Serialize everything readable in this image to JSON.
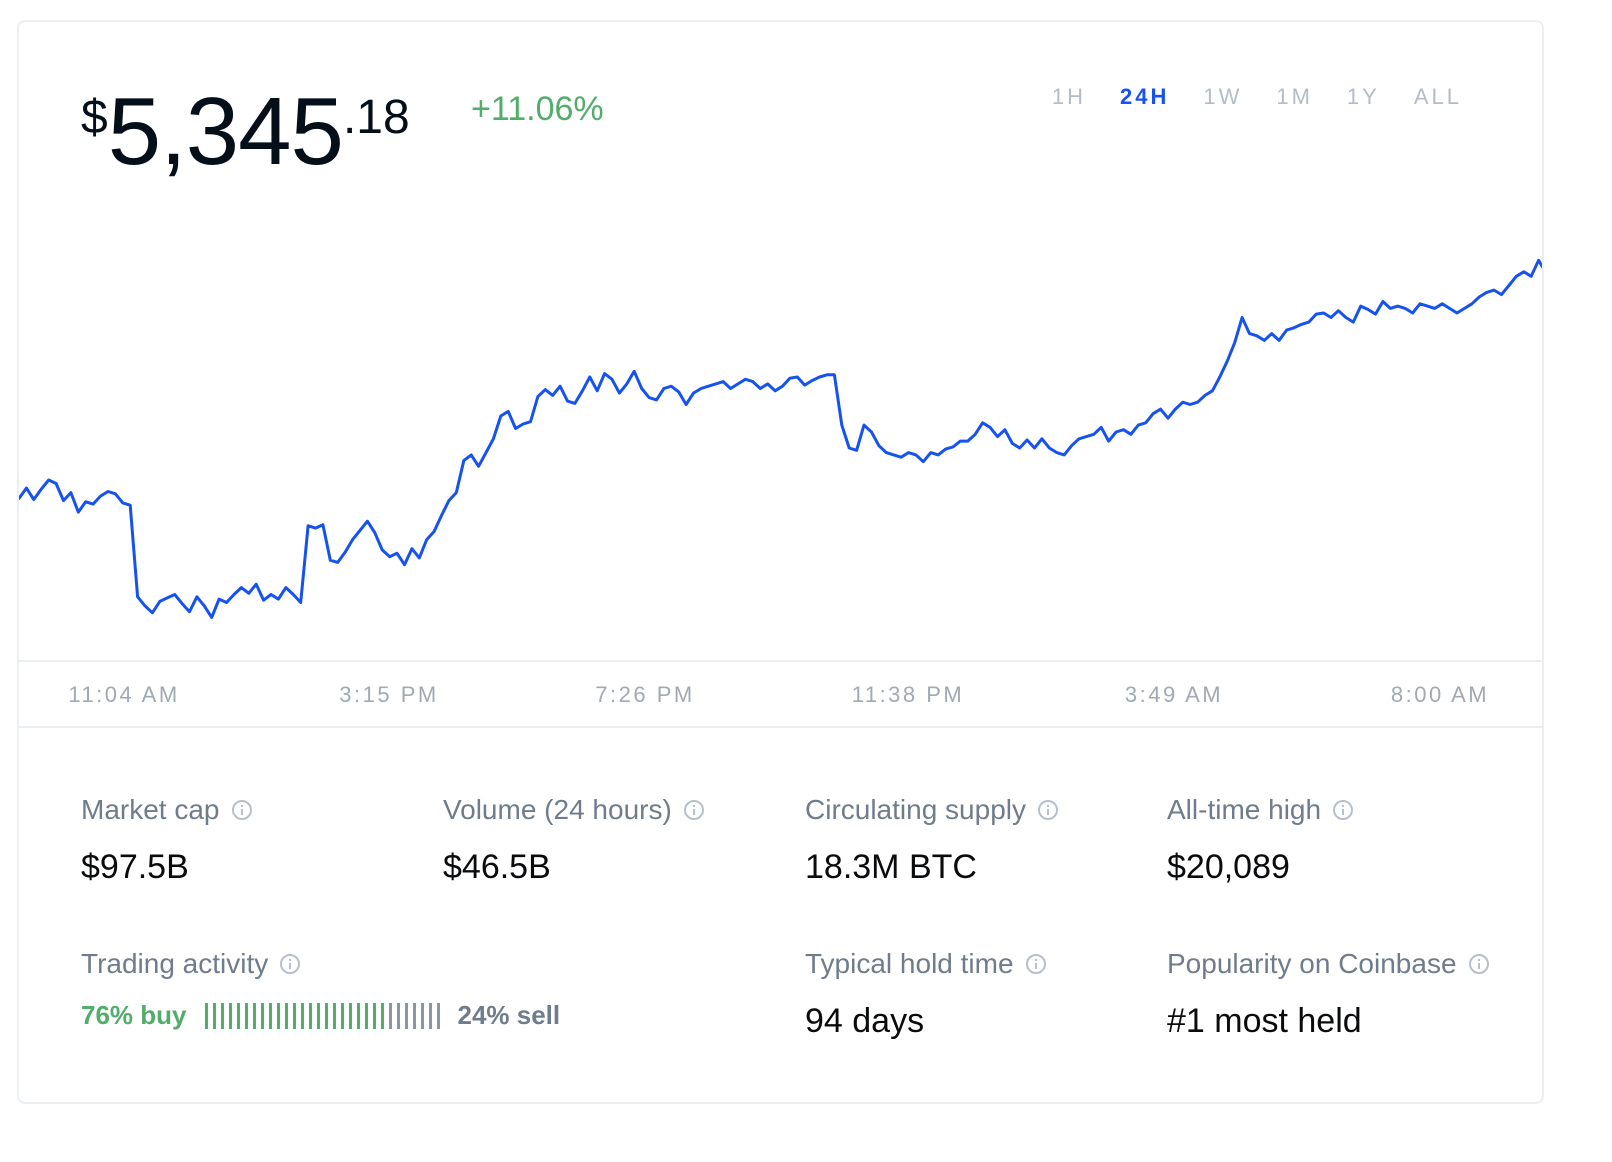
{
  "price": {
    "currency_symbol": "$",
    "whole": "5,345",
    "cents": ".18",
    "change": "+11.06%"
  },
  "time_ranges": [
    {
      "label": "1H",
      "active": false
    },
    {
      "label": "24H",
      "active": true
    },
    {
      "label": "1W",
      "active": false
    },
    {
      "label": "1M",
      "active": false
    },
    {
      "label": "1Y",
      "active": false
    },
    {
      "label": "ALL",
      "active": false
    }
  ],
  "colors": {
    "line": "#1652f0",
    "positive": "#52ad6b",
    "active_range": "#1652f0",
    "muted": "#6f7c8b",
    "sell_bars": "#8a96a3"
  },
  "chart_data": {
    "type": "line",
    "x_tick_labels": [
      "11:04 AM",
      "3:15 PM",
      "7:26 PM",
      "11:38 PM",
      "3:49 AM",
      "8:00 AM"
    ],
    "series": [
      {
        "values": [
          4836,
          4845,
          4835,
          4844,
          4852,
          4849,
          4834,
          4841,
          4824,
          4833,
          4831,
          4838,
          4842,
          4840,
          4832,
          4830,
          4750,
          4742,
          4736,
          4746,
          4749,
          4752,
          4744,
          4737,
          4750,
          4742,
          4732,
          4748,
          4745,
          4752,
          4758,
          4753,
          4761,
          4747,
          4752,
          4748,
          4758,
          4752,
          4745,
          4812,
          4810,
          4813,
          4782,
          4780,
          4789,
          4800,
          4808,
          4816,
          4806,
          4791,
          4785,
          4788,
          4778,
          4792,
          4784,
          4800,
          4807,
          4821,
          4834,
          4841,
          4869,
          4874,
          4864,
          4876,
          4888,
          4908,
          4912,
          4897,
          4901,
          4903,
          4925,
          4931,
          4926,
          4934,
          4921,
          4919,
          4930,
          4942,
          4930,
          4945,
          4940,
          4928,
          4936,
          4947,
          4932,
          4924,
          4922,
          4932,
          4934,
          4929,
          4918,
          4928,
          4932,
          4934,
          4936,
          4938,
          4932,
          4936,
          4940,
          4938,
          4932,
          4936,
          4930,
          4934,
          4941,
          4942,
          4935,
          4939,
          4942,
          4944,
          4944,
          4900,
          4880,
          4878,
          4900,
          4894,
          4882,
          4876,
          4874,
          4872,
          4876,
          4874,
          4868,
          4876,
          4874,
          4879,
          4881,
          4886,
          4886,
          4892,
          4902,
          4898,
          4890,
          4896,
          4884,
          4880,
          4887,
          4880,
          4888,
          4880,
          4876,
          4874,
          4882,
          4888,
          4890,
          4892,
          4898,
          4886,
          4894,
          4896,
          4892,
          4900,
          4902,
          4910,
          4914,
          4906,
          4914,
          4920,
          4918,
          4920,
          4926,
          4930,
          4942,
          4956,
          4972,
          4994,
          4980,
          4978,
          4974,
          4980,
          4974,
          4983,
          4985,
          4988,
          4990,
          4997,
          4998,
          4994,
          5000,
          4994,
          4990,
          5004,
          5001,
          4997,
          5008,
          5002,
          5004,
          5002,
          4998,
          5006,
          5004,
          5002,
          5006,
          5002,
          4998,
          5002,
          5006,
          5012,
          5016,
          5018,
          5014,
          5022,
          5030,
          5034,
          5030,
          5044,
          5033
        ],
        "ylim": [
          4700,
          5060
        ]
      }
    ]
  },
  "stats": [
    {
      "label": "Market cap",
      "value": "$97.5B"
    },
    {
      "label": "Volume (24 hours)",
      "value": "$46.5B"
    },
    {
      "label": "Circulating supply",
      "value": "18.3M BTC"
    },
    {
      "label": "All-time high",
      "value": "$20,089"
    }
  ],
  "trading_activity": {
    "label": "Trading activity",
    "buy_text": "76% buy",
    "sell_text": "24% sell",
    "buy_fraction": 0.76
  },
  "hold_time": {
    "label": "Typical hold time",
    "value": "94 days"
  },
  "popularity": {
    "label": "Popularity on Coinbase",
    "value": "#1 most held"
  }
}
